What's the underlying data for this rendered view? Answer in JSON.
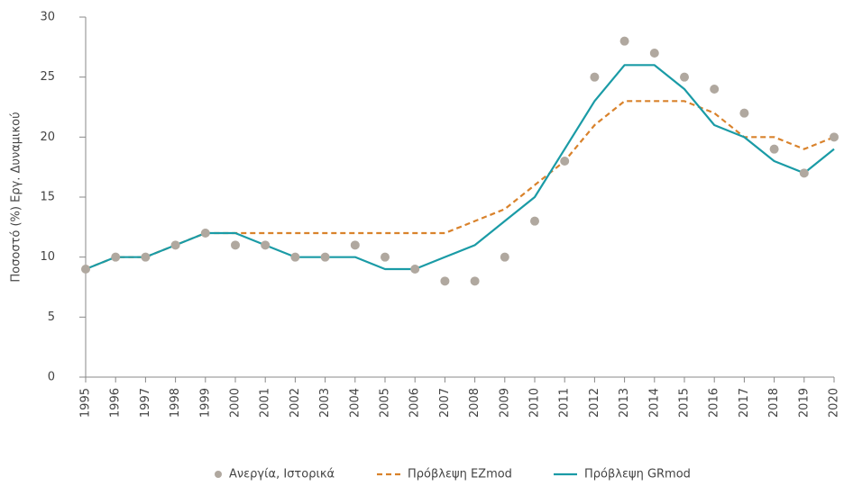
{
  "chart_data": {
    "type": "line",
    "y_label": "Ποσοστό (%) Εργ. Δυναμικού",
    "categories": [
      "1995",
      "1996",
      "1997",
      "1998",
      "1999",
      "2000",
      "2001",
      "2002",
      "2003",
      "2004",
      "2005",
      "2006",
      "2007",
      "2008",
      "2009",
      "2010",
      "2011",
      "2012",
      "2013",
      "2014",
      "2015",
      "2016",
      "2017",
      "2018",
      "2019",
      "2020"
    ],
    "series": [
      {
        "name": "Ανεργία, Ιστορικά",
        "color": "#b0a89f",
        "style": "marker",
        "values": [
          9,
          10,
          10,
          11,
          12,
          11,
          11,
          10,
          10,
          11,
          10,
          9,
          8,
          8,
          10,
          13,
          18,
          25,
          28,
          27,
          25,
          24,
          22,
          19,
          17,
          20
        ]
      },
      {
        "name": "Πρόβλεψη EZmod",
        "color": "#d9822b",
        "style": "dashed",
        "values": [
          9,
          10,
          10,
          11,
          12,
          12,
          12,
          12,
          12,
          12,
          12,
          12,
          12,
          13,
          14,
          16,
          18,
          21,
          23,
          23,
          23,
          22,
          20,
          20,
          19,
          20
        ]
      },
      {
        "name": "Πρόβλεψη GRmod",
        "color": "#1a9ba6",
        "style": "solid",
        "values": [
          9,
          10,
          10,
          11,
          12,
          12,
          11,
          10,
          10,
          10,
          9,
          9,
          10,
          11,
          13,
          15,
          19,
          23,
          26,
          26,
          24,
          21,
          20,
          18,
          17,
          19
        ]
      }
    ],
    "ylim": [
      0,
      30
    ],
    "yticks": [
      0,
      5,
      10,
      15,
      20,
      25,
      30
    ],
    "grid": false,
    "legend": "bottom"
  }
}
